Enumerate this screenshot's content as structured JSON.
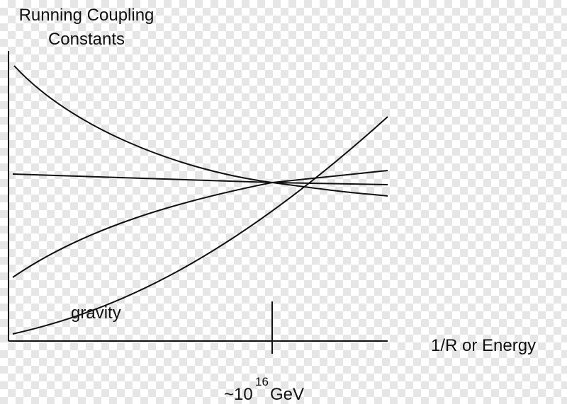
{
  "title": {
    "lines": [
      "Running Coupling",
      "Constants"
    ]
  },
  "x_axis": {
    "label": "1/R or Energy"
  },
  "curve_label": "gravity",
  "marker": {
    "prefix": "~10",
    "exponent": "16",
    "unit": "GeV"
  }
}
